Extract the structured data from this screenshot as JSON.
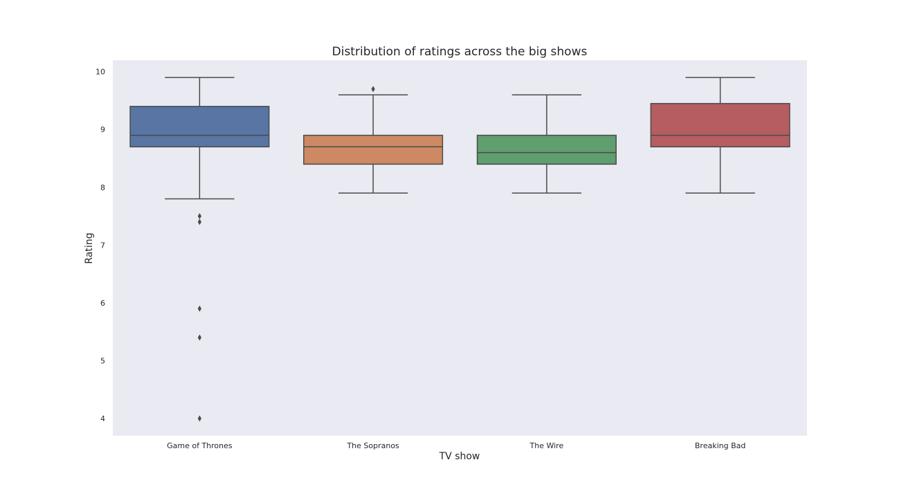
{
  "chart_data": {
    "type": "box",
    "title": "Distribution of ratings across the big shows",
    "xlabel": "TV show",
    "ylabel": "Rating",
    "ylim": [
      3.7,
      10.2
    ],
    "yticks": [
      4,
      5,
      6,
      7,
      8,
      9,
      10
    ],
    "grid": false,
    "legend": "none",
    "background": "#eaeaf2",
    "box_edge_color": "#4a4a4a",
    "categories": [
      "Game of Thrones",
      "The Sopranos",
      "The Wire",
      "Breaking Bad"
    ],
    "series": [
      {
        "category": "Game of Thrones",
        "color": "#5875a4",
        "whisker_low": 7.8,
        "q1": 8.7,
        "median": 8.9,
        "q3": 9.4,
        "whisker_high": 9.9,
        "outliers": [
          7.5,
          7.4,
          5.9,
          5.4,
          4.0
        ]
      },
      {
        "category": "The Sopranos",
        "color": "#cc8963",
        "whisker_low": 7.9,
        "q1": 8.4,
        "median": 8.7,
        "q3": 8.9,
        "whisker_high": 9.6,
        "outliers": [
          9.7
        ]
      },
      {
        "category": "The Wire",
        "color": "#5f9e6e",
        "whisker_low": 7.9,
        "q1": 8.4,
        "median": 8.6,
        "q3": 8.9,
        "whisker_high": 9.6,
        "outliers": []
      },
      {
        "category": "Breaking Bad",
        "color": "#b55d60",
        "whisker_low": 7.9,
        "q1": 8.7,
        "median": 8.9,
        "q3": 9.45,
        "whisker_high": 9.9,
        "outliers": []
      }
    ]
  }
}
